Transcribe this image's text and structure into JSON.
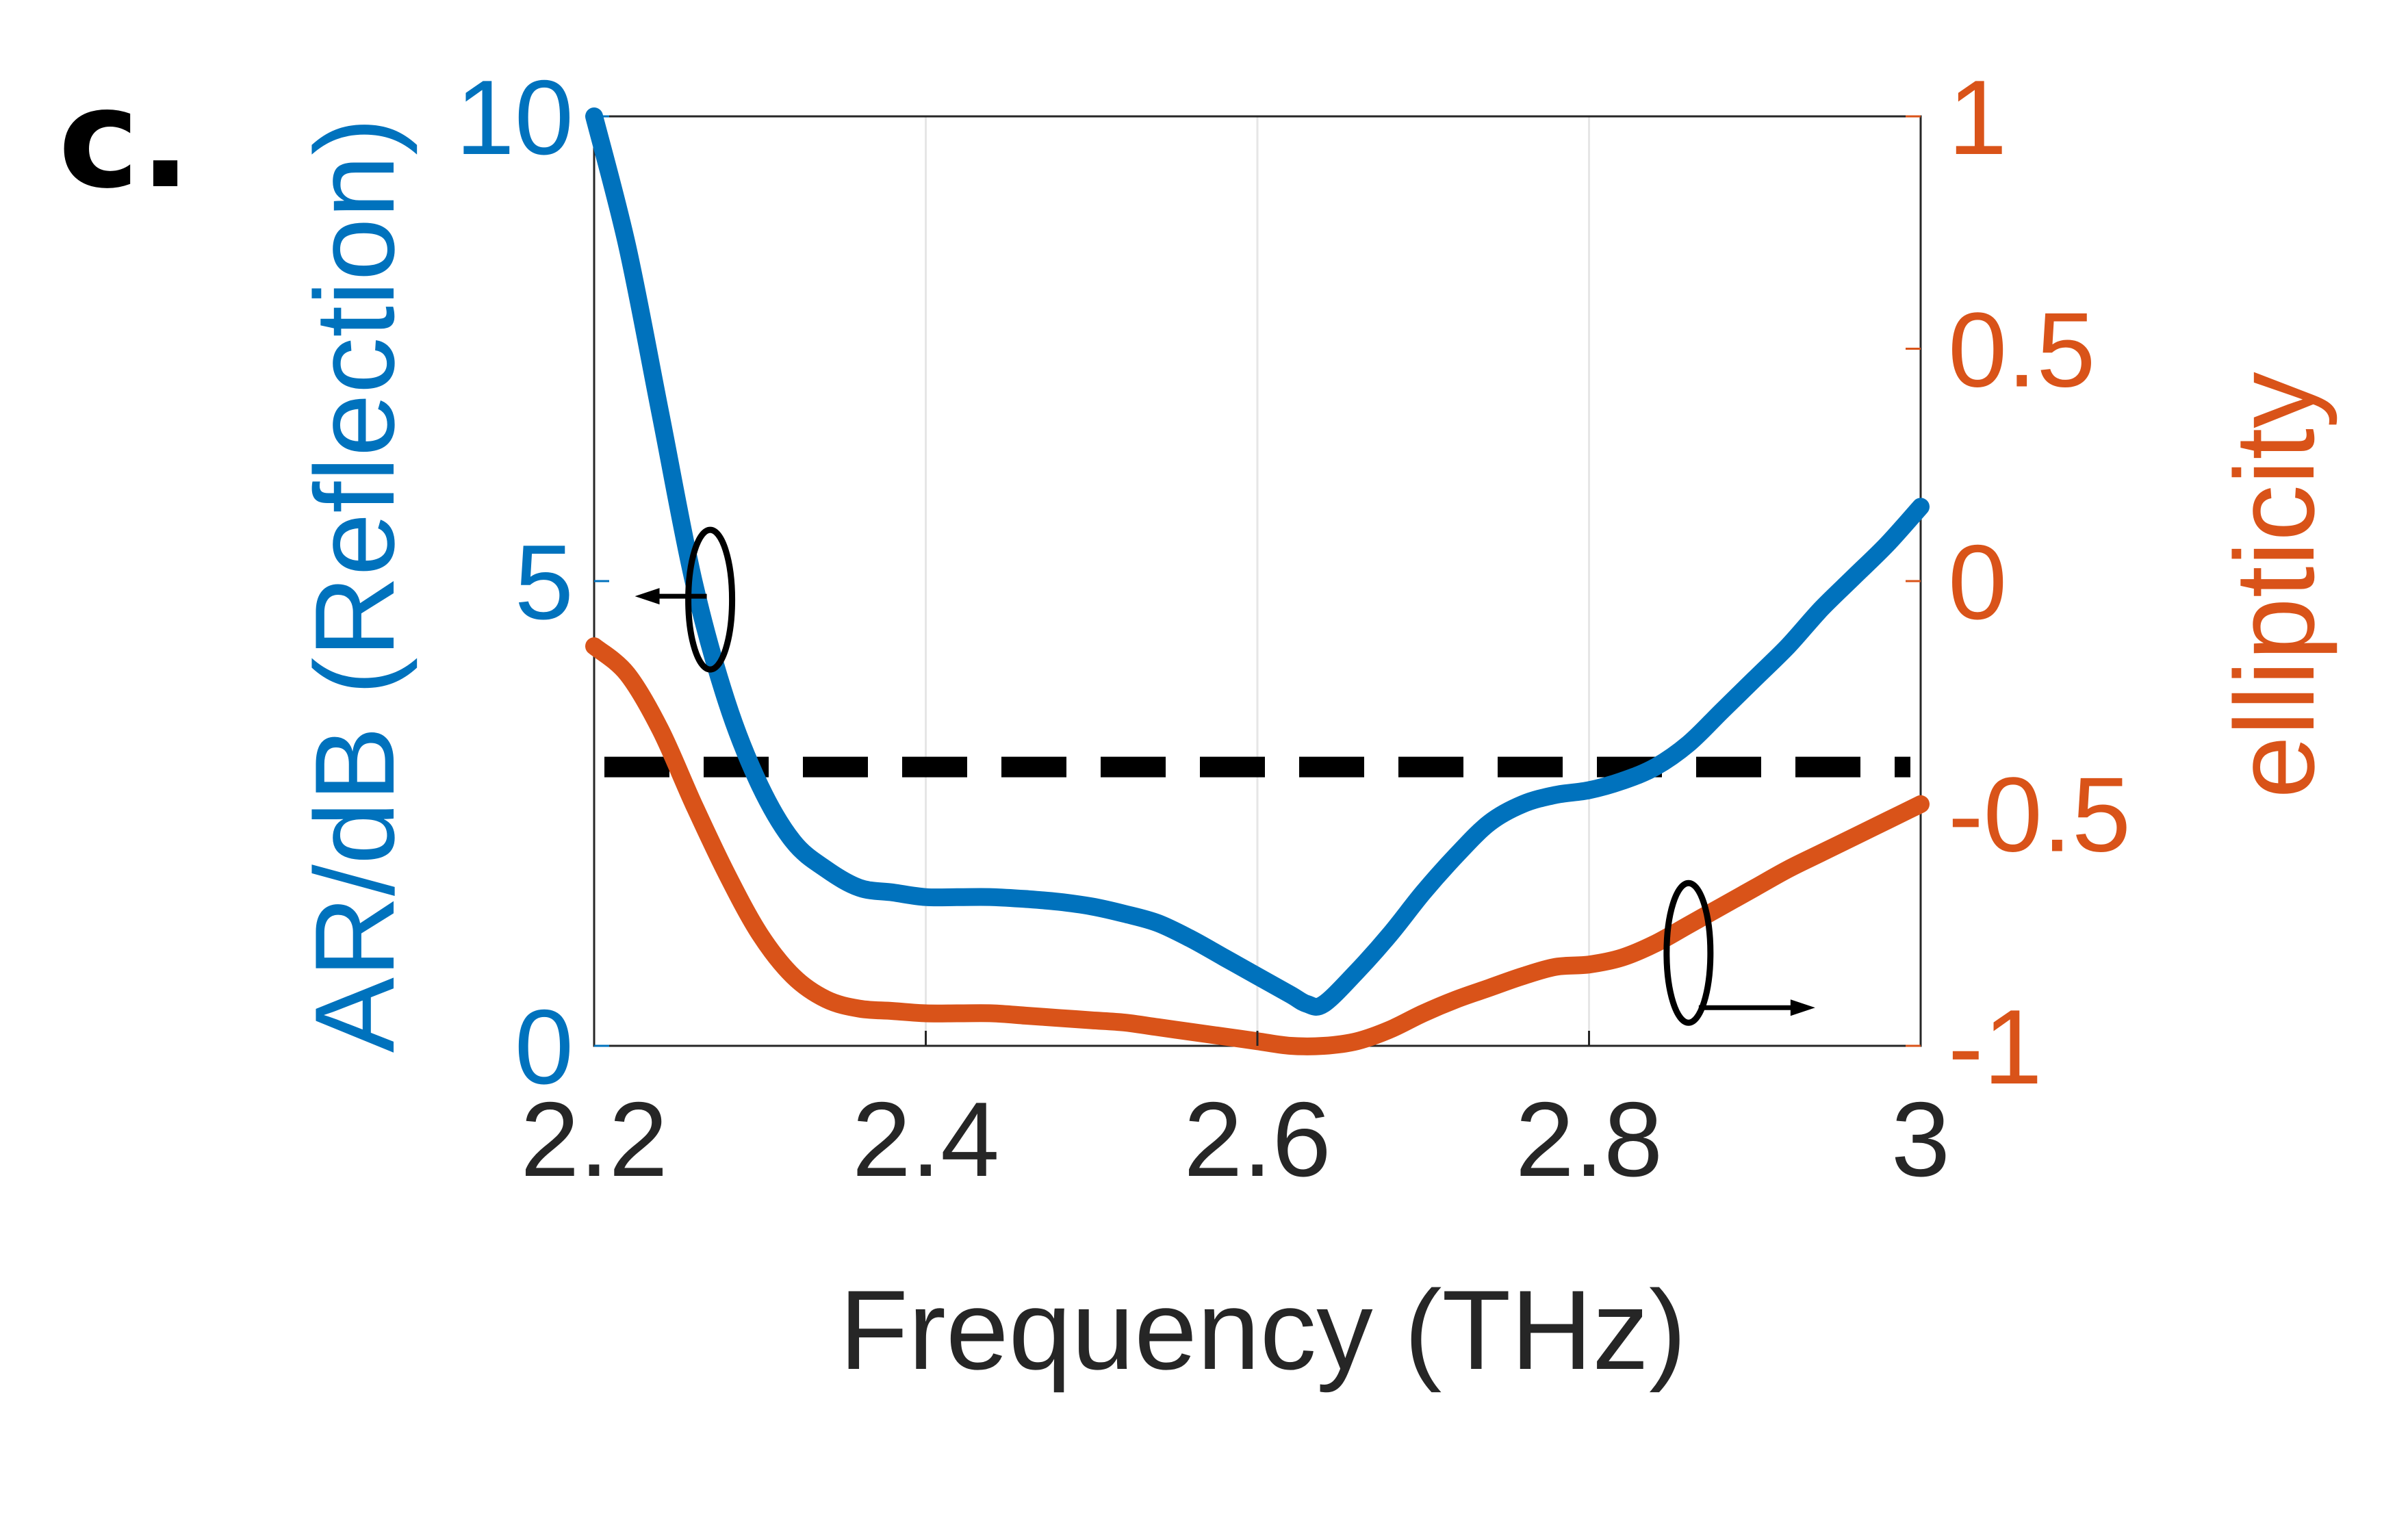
{
  "panel_label": "c.",
  "colors": {
    "left_series": "#0072BD",
    "right_series": "#D95319",
    "threshold": "#000000",
    "axis": "#262626",
    "grid": "#e6e6e6"
  },
  "chart_data": {
    "type": "line",
    "title": "",
    "xlabel": "Frequency (THz)",
    "ylabel_left": "AR/dB (Reflection)",
    "ylabel_right": "ellipticity",
    "xlim": [
      2.2,
      3.0
    ],
    "ylim_left": [
      0,
      10
    ],
    "ylim_right": [
      -1,
      1
    ],
    "x_ticks": [
      "2.2",
      "2.4",
      "2.6",
      "2.8",
      "3"
    ],
    "y_left_ticks": [
      "0",
      "5",
      "10"
    ],
    "y_right_ticks": [
      "-1",
      "-0.5",
      "0",
      "0.5",
      "1"
    ],
    "grid": "vertical",
    "threshold_line": {
      "axis": "left",
      "value": 3,
      "style": "dashed"
    },
    "series": [
      {
        "axis": "left",
        "color": "#0072BD",
        "x": [
          2.2,
          2.22,
          2.24,
          2.26,
          2.28,
          2.3,
          2.32,
          2.34,
          2.36,
          2.38,
          2.4,
          2.42,
          2.44,
          2.46,
          2.48,
          2.5,
          2.52,
          2.54,
          2.56,
          2.58,
          2.6,
          2.62,
          2.63,
          2.64,
          2.66,
          2.68,
          2.7,
          2.72,
          2.74,
          2.76,
          2.78,
          2.8,
          2.82,
          2.84,
          2.86,
          2.88,
          2.9,
          2.92,
          2.94,
          2.96,
          2.98,
          3.0
        ],
        "values": [
          10.0,
          8.6,
          6.8,
          5.0,
          3.7,
          2.8,
          2.2,
          1.9,
          1.7,
          1.65,
          1.6,
          1.6,
          1.6,
          1.58,
          1.55,
          1.5,
          1.42,
          1.32,
          1.15,
          0.95,
          0.75,
          0.55,
          0.45,
          0.45,
          0.8,
          1.2,
          1.65,
          2.05,
          2.4,
          2.6,
          2.7,
          2.75,
          2.85,
          3.0,
          3.25,
          3.6,
          3.95,
          4.3,
          4.7,
          5.05,
          5.4,
          5.8
        ]
      },
      {
        "axis": "right",
        "color": "#D95319",
        "x": [
          2.2,
          2.22,
          2.24,
          2.26,
          2.28,
          2.3,
          2.32,
          2.34,
          2.36,
          2.38,
          2.4,
          2.42,
          2.44,
          2.46,
          2.48,
          2.5,
          2.52,
          2.54,
          2.56,
          2.58,
          2.6,
          2.62,
          2.64,
          2.66,
          2.68,
          2.7,
          2.72,
          2.74,
          2.76,
          2.78,
          2.8,
          2.82,
          2.84,
          2.86,
          2.88,
          2.9,
          2.92,
          2.94,
          2.96,
          2.98,
          3.0
        ],
        "values": [
          -0.14,
          -0.2,
          -0.32,
          -0.48,
          -0.63,
          -0.76,
          -0.85,
          -0.9,
          -0.92,
          -0.925,
          -0.93,
          -0.93,
          -0.93,
          -0.935,
          -0.94,
          -0.945,
          -0.95,
          -0.96,
          -0.97,
          -0.98,
          -0.99,
          -1.0,
          -1.0,
          -0.99,
          -0.965,
          -0.93,
          -0.9,
          -0.875,
          -0.85,
          -0.83,
          -0.825,
          -0.81,
          -0.78,
          -0.74,
          -0.7,
          -0.66,
          -0.62,
          -0.585,
          -0.55,
          -0.515,
          -0.48
        ]
      }
    ],
    "annotations": [
      {
        "shape": "ellipse-with-arrow",
        "points_to": "left-axis",
        "near_x": 2.27,
        "near_y_left": 4.8
      },
      {
        "shape": "ellipse-with-arrow",
        "points_to": "right-axis",
        "near_x": 2.86,
        "near_y_right": -0.8
      }
    ]
  }
}
